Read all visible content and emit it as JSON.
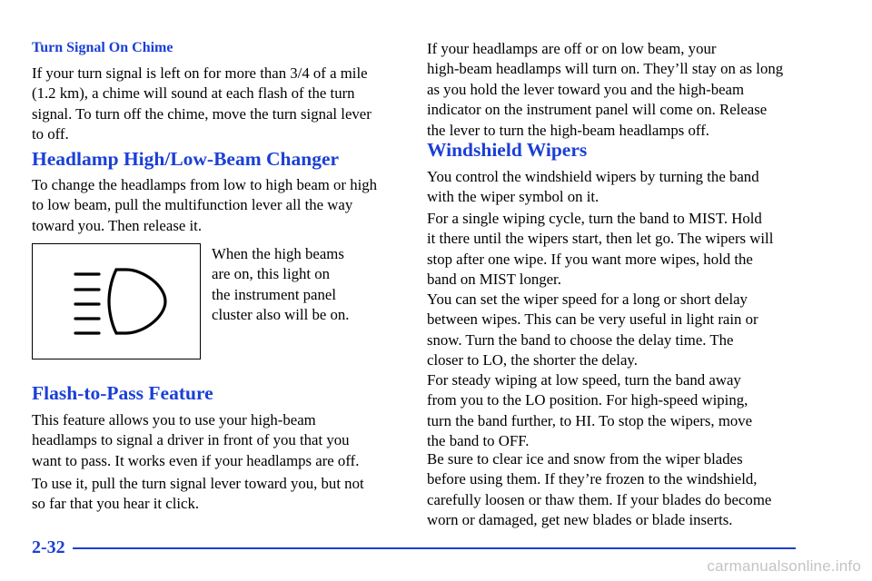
{
  "left_column": {
    "turn_signal_chime": {
      "title": "Turn Signal On Chime",
      "lines": [
        "If your turn signal is left on for more than 3/4 of a mile",
        "(1.2 km), a chime will sound at each flash of the turn",
        "signal. To turn off the chime, move the turn signal lever",
        "to off."
      ]
    },
    "headlamp_changer": {
      "title": "Headlamp High/Low-Beam Changer",
      "lines": [
        "To change the headlamps from low to high beam or high",
        "to low beam, pull the multifunction lever all the way",
        "toward you. Then release it."
      ],
      "caption_lines": [
        "When the high beams",
        "are on, this light on",
        "the instrument panel",
        "cluster also will be on."
      ],
      "icon": "high-beam-indicator-icon"
    },
    "flash_to_pass": {
      "title": "Flash-to-Pass Feature",
      "para1_lines": [
        "This feature allows you to use your high-beam",
        "headlamps to signal a driver in front of you that you",
        "want to pass. It works even if your headlamps are off."
      ],
      "para2_lines": [
        "To use it, pull the turn signal lever toward you, but not",
        "so far that you hear it click."
      ]
    }
  },
  "right_column": {
    "flash_continued_lines": [
      "If your headlamps are off or on low beam, your",
      "high-beam headlamps will turn on. They’ll stay on as long",
      "as you hold the lever toward you and the high-beam",
      "indicator on the instrument panel will come on. Release",
      "the lever to turn the high-beam headlamps off."
    ],
    "windshield_wipers": {
      "title": "Windshield Wipers",
      "paragraphs": [
        [
          "You control the windshield wipers by turning the band",
          "with the wiper symbol on it."
        ],
        [
          "For a single wiping cycle, turn the band to MIST. Hold",
          "it there until the wipers start, then let go. The wipers will",
          "stop after one wipe. If you want more wipes, hold the",
          "band on MIST longer."
        ],
        [
          "You can set the wiper speed for a long or short delay",
          "between wipes. This can be very useful in light rain or",
          "snow. Turn the band to choose the delay time. The",
          "closer to LO, the shorter the delay."
        ],
        [
          "For steady wiping at low speed, turn the band away",
          "from you to the LO position. For high-speed wiping,",
          "turn the band further, to HI. To stop the wipers, move",
          "the band to OFF."
        ],
        [
          "Be sure to clear ice and snow from the wiper blades",
          "before using them. If they’re frozen to the windshield,",
          "carefully loosen or thaw them. If your blades do become",
          "worn or damaged, get new blades or blade inserts."
        ]
      ]
    }
  },
  "footer": {
    "page_number": "2-32",
    "watermark": "carmanualsonline.info"
  },
  "colors": {
    "heading": "#1a3fd6",
    "text": "#000000",
    "watermark": "#c4c4c4"
  }
}
